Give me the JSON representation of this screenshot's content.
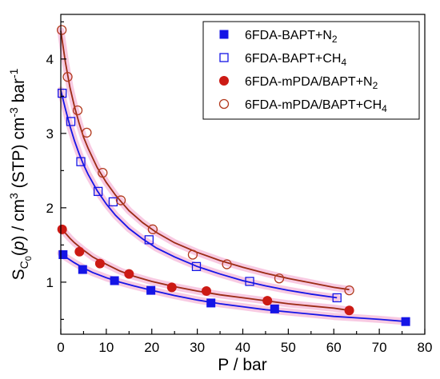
{
  "chart_data": {
    "type": "scatter",
    "xlabel": "P / bar",
    "ylabel_parts": {
      "s": "S",
      "sub_c": "C",
      "sub_0": "0",
      "open": "(",
      "p": "p",
      "rest1": ") / cm",
      "sup3a": "3",
      "rest2": " (STP) cm",
      "sup_neg3": "-3",
      "rest3": " bar",
      "sup_neg1": "-1"
    },
    "xlim": [
      0,
      80
    ],
    "ylim": [
      0.3,
      4.6
    ],
    "xticks": [
      0,
      10,
      20,
      30,
      40,
      50,
      60,
      70,
      80
    ],
    "yticks": [
      1,
      2,
      3,
      4
    ],
    "xtick_labels": [
      "0",
      "10",
      "20",
      "30",
      "40",
      "50",
      "60",
      "70",
      "80"
    ],
    "ytick_labels": [
      "1",
      "2",
      "3",
      "4"
    ],
    "legend_position": "top-right",
    "series": [
      {
        "name_main": "6FDA-BAPT+N",
        "name_sub": "2",
        "marker": "square-filled",
        "color": "#1515e6",
        "x": [
          0.5,
          4.8,
          11.8,
          19.8,
          33.0,
          47.0,
          75.8
        ],
        "y": [
          1.37,
          1.17,
          1.02,
          0.89,
          0.72,
          0.64,
          0.47
        ]
      },
      {
        "name_main": "6FDA-BAPT+CH",
        "name_sub": "4",
        "marker": "square-open",
        "color": "#1515e6",
        "x": [
          0.3,
          2.2,
          4.4,
          8.2,
          11.5,
          19.4,
          29.8,
          41.5,
          60.7
        ],
        "y": [
          3.54,
          3.16,
          2.62,
          2.22,
          2.08,
          1.57,
          1.21,
          1.01,
          0.79
        ]
      },
      {
        "name_main": "6FDA-mPDA/BAPT+N",
        "name_sub": "2",
        "marker": "circle-filled",
        "color": "#cc1a14",
        "x": [
          0.3,
          4.1,
          8.6,
          15.0,
          24.4,
          32.0,
          45.4,
          63.4
        ],
        "y": [
          1.71,
          1.41,
          1.25,
          1.11,
          0.93,
          0.88,
          0.75,
          0.62
        ]
      },
      {
        "name_main": "6FDA-mPDA/BAPT+CH",
        "name_sub": "4",
        "marker": "circle-open",
        "color": "#b23a1e",
        "x": [
          0.2,
          1.5,
          3.7,
          5.7,
          9.2,
          13.2,
          20.2,
          29.0,
          36.5,
          48.0,
          63.4
        ],
        "y": [
          4.39,
          3.76,
          3.31,
          3.01,
          2.47,
          2.1,
          1.71,
          1.37,
          1.24,
          1.05,
          0.89
        ]
      }
    ],
    "fits": [
      {
        "color": "#1515e6",
        "x": [
          0,
          1,
          2,
          3,
          5,
          7,
          10,
          13,
          16,
          20,
          25,
          30,
          35,
          40,
          45,
          50,
          55,
          60,
          65,
          70,
          76
        ],
        "y": [
          1.39,
          1.34,
          1.3,
          1.26,
          1.19,
          1.13,
          1.06,
          1.0,
          0.95,
          0.89,
          0.82,
          0.76,
          0.71,
          0.67,
          0.63,
          0.6,
          0.57,
          0.54,
          0.52,
          0.5,
          0.47
        ]
      },
      {
        "color": "#1515e6",
        "x": [
          0,
          1,
          2,
          3,
          4,
          5,
          6,
          8,
          10,
          12,
          15,
          18,
          21,
          25,
          30,
          35,
          40,
          45,
          50,
          55,
          60.7
        ],
        "y": [
          3.58,
          3.33,
          3.1,
          2.9,
          2.73,
          2.58,
          2.45,
          2.23,
          2.05,
          1.9,
          1.72,
          1.58,
          1.46,
          1.34,
          1.21,
          1.11,
          1.02,
          0.95,
          0.89,
          0.84,
          0.79
        ]
      },
      {
        "color": "#9b2b14",
        "x": [
          0,
          1,
          2,
          3,
          5,
          7,
          10,
          13,
          16,
          20,
          25,
          30,
          35,
          40,
          45,
          50,
          55,
          60,
          63.4
        ],
        "y": [
          1.72,
          1.66,
          1.59,
          1.53,
          1.43,
          1.34,
          1.24,
          1.15,
          1.08,
          1.01,
          0.94,
          0.88,
          0.83,
          0.79,
          0.75,
          0.71,
          0.68,
          0.65,
          0.62
        ]
      },
      {
        "color": "#9b2b14",
        "x": [
          0,
          1,
          2,
          3,
          4,
          5,
          6,
          8,
          10,
          12,
          15,
          18,
          21,
          25,
          30,
          35,
          40,
          45,
          50,
          55,
          60,
          63.4
        ],
        "y": [
          4.38,
          3.96,
          3.62,
          3.36,
          3.14,
          2.95,
          2.8,
          2.54,
          2.34,
          2.17,
          1.96,
          1.8,
          1.67,
          1.53,
          1.4,
          1.29,
          1.2,
          1.12,
          1.05,
          0.99,
          0.93,
          0.9
        ]
      }
    ]
  }
}
